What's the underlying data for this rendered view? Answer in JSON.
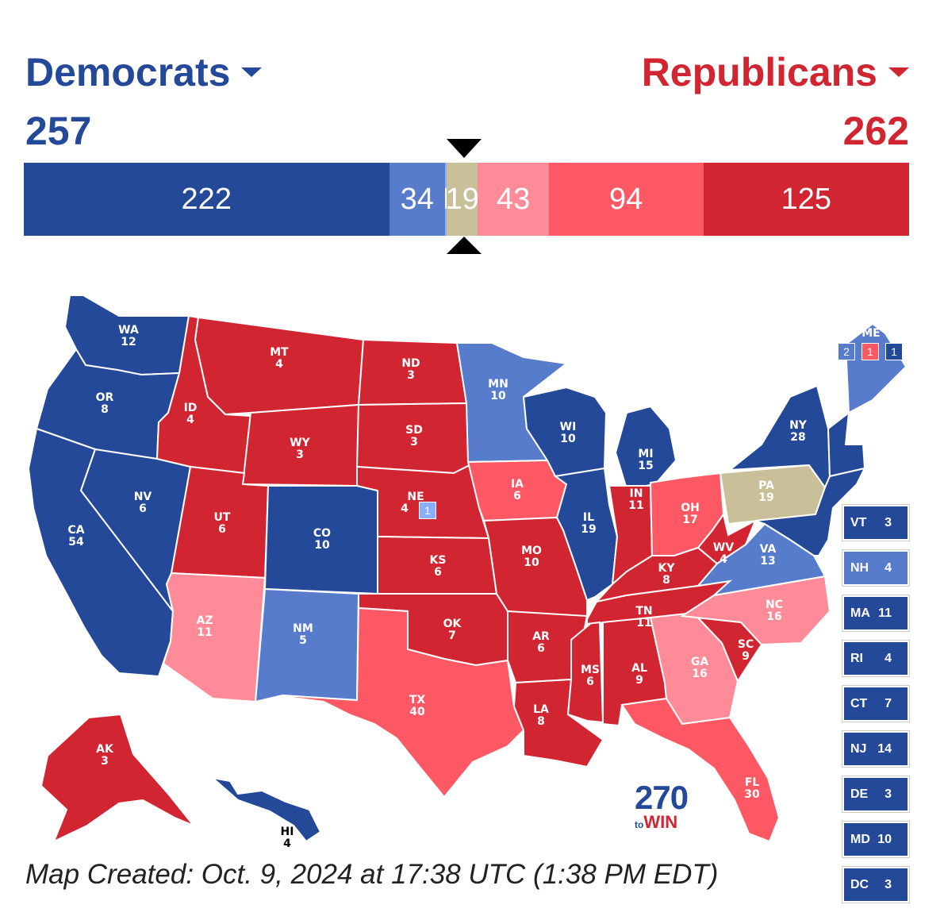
{
  "header": {
    "dem_label": "Democrats",
    "rep_label": "Republicans",
    "dem_total": "257",
    "rep_total": "262"
  },
  "colors": {
    "safe_d": "#244999",
    "likely_d": "#577ccc",
    "lean_d": "#8aafff",
    "tossup": "#c9c09a",
    "lean_r": "#ff8b98",
    "likely_r": "#ff5865",
    "safe_r": "#d22532"
  },
  "bar": [
    {
      "label": "222",
      "value": 222,
      "rating": "safe_d"
    },
    {
      "label": "34",
      "value": 34,
      "rating": "likely_d"
    },
    {
      "label": "1",
      "value": 1,
      "rating": "lean_d"
    },
    {
      "label": "19",
      "value": 19,
      "rating": "tossup"
    },
    {
      "label": "43",
      "value": 43,
      "rating": "lean_r"
    },
    {
      "label": "94",
      "value": 94,
      "rating": "likely_r"
    },
    {
      "label": "125",
      "value": 125,
      "rating": "safe_r"
    }
  ],
  "states": [
    {
      "abbr": "WA",
      "ev": "12",
      "rating": "safe_d"
    },
    {
      "abbr": "OR",
      "ev": "8",
      "rating": "safe_d"
    },
    {
      "abbr": "CA",
      "ev": "54",
      "rating": "safe_d"
    },
    {
      "abbr": "NV",
      "ev": "6",
      "rating": "safe_d"
    },
    {
      "abbr": "ID",
      "ev": "4",
      "rating": "safe_r"
    },
    {
      "abbr": "MT",
      "ev": "4",
      "rating": "safe_r"
    },
    {
      "abbr": "WY",
      "ev": "3",
      "rating": "safe_r"
    },
    {
      "abbr": "UT",
      "ev": "6",
      "rating": "safe_r"
    },
    {
      "abbr": "CO",
      "ev": "10",
      "rating": "safe_d"
    },
    {
      "abbr": "AZ",
      "ev": "11",
      "rating": "lean_r"
    },
    {
      "abbr": "NM",
      "ev": "5",
      "rating": "likely_d"
    },
    {
      "abbr": "ND",
      "ev": "3",
      "rating": "safe_r"
    },
    {
      "abbr": "SD",
      "ev": "3",
      "rating": "safe_r"
    },
    {
      "abbr": "NE",
      "ev": "4",
      "rating": "safe_r"
    },
    {
      "abbr": "KS",
      "ev": "6",
      "rating": "safe_r"
    },
    {
      "abbr": "OK",
      "ev": "7",
      "rating": "safe_r"
    },
    {
      "abbr": "TX",
      "ev": "40",
      "rating": "likely_r"
    },
    {
      "abbr": "MN",
      "ev": "10",
      "rating": "likely_d"
    },
    {
      "abbr": "IA",
      "ev": "6",
      "rating": "likely_r"
    },
    {
      "abbr": "MO",
      "ev": "10",
      "rating": "safe_r"
    },
    {
      "abbr": "AR",
      "ev": "6",
      "rating": "safe_r"
    },
    {
      "abbr": "LA",
      "ev": "8",
      "rating": "safe_r"
    },
    {
      "abbr": "WI",
      "ev": "10",
      "rating": "safe_d"
    },
    {
      "abbr": "IL",
      "ev": "19",
      "rating": "safe_d"
    },
    {
      "abbr": "MI",
      "ev": "15",
      "rating": "safe_d"
    },
    {
      "abbr": "IN",
      "ev": "11",
      "rating": "safe_r"
    },
    {
      "abbr": "OH",
      "ev": "17",
      "rating": "likely_r"
    },
    {
      "abbr": "KY",
      "ev": "8",
      "rating": "safe_r"
    },
    {
      "abbr": "TN",
      "ev": "11",
      "rating": "safe_r"
    },
    {
      "abbr": "MS",
      "ev": "6",
      "rating": "safe_r"
    },
    {
      "abbr": "AL",
      "ev": "9",
      "rating": "safe_r"
    },
    {
      "abbr": "GA",
      "ev": "16",
      "rating": "lean_r"
    },
    {
      "abbr": "FL",
      "ev": "30",
      "rating": "likely_r"
    },
    {
      "abbr": "SC",
      "ev": "9",
      "rating": "safe_r"
    },
    {
      "abbr": "NC",
      "ev": "16",
      "rating": "lean_r"
    },
    {
      "abbr": "VA",
      "ev": "13",
      "rating": "likely_d"
    },
    {
      "abbr": "WV",
      "ev": "4",
      "rating": "safe_r"
    },
    {
      "abbr": "PA",
      "ev": "19",
      "rating": "tossup"
    },
    {
      "abbr": "NY",
      "ev": "28",
      "rating": "safe_d"
    },
    {
      "abbr": "AK",
      "ev": "3",
      "rating": "safe_r"
    },
    {
      "abbr": "HI",
      "ev": "4",
      "rating": "safe_d"
    }
  ],
  "maine": {
    "label": "ME",
    "districts": [
      {
        "ev": "2",
        "rating": "likely_d"
      },
      {
        "ev": "1",
        "rating": "likely_r"
      },
      {
        "ev": "1",
        "rating": "safe_d"
      }
    ]
  },
  "nebraska_district": {
    "ev": "1",
    "rating": "lean_d"
  },
  "small_states": [
    {
      "abbr": "VT",
      "ev": "3",
      "rating": "safe_d"
    },
    {
      "abbr": "NH",
      "ev": "4",
      "rating": "likely_d"
    },
    {
      "abbr": "MA",
      "ev": "11",
      "rating": "safe_d"
    },
    {
      "abbr": "RI",
      "ev": "4",
      "rating": "safe_d"
    },
    {
      "abbr": "CT",
      "ev": "7",
      "rating": "safe_d"
    },
    {
      "abbr": "NJ",
      "ev": "14",
      "rating": "safe_d"
    },
    {
      "abbr": "DE",
      "ev": "3",
      "rating": "safe_d"
    },
    {
      "abbr": "MD",
      "ev": "10",
      "rating": "safe_d"
    },
    {
      "abbr": "DC",
      "ev": "3",
      "rating": "safe_d"
    }
  ],
  "logo": {
    "number": "270",
    "to": "to",
    "win": "WIN"
  },
  "caption": "Map Created: Oct. 9, 2024 at 17:38 UTC (1:38 PM EDT)"
}
